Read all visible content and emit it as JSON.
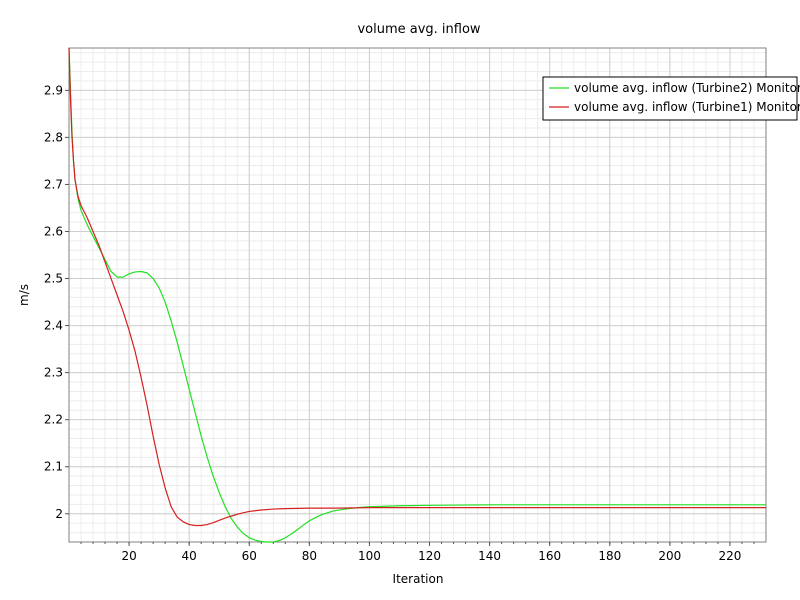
{
  "chart_data": {
    "type": "line",
    "title": "volume avg. inflow",
    "xlabel": "Iteration",
    "ylabel": "m/s",
    "xlim": [
      0,
      232
    ],
    "ylim": [
      1.94,
      2.99
    ],
    "xticks": [
      20,
      40,
      60,
      80,
      100,
      120,
      140,
      160,
      180,
      200,
      220
    ],
    "yticks": [
      2.0,
      2.1,
      2.2,
      2.3,
      2.4,
      2.5,
      2.6,
      2.7,
      2.8,
      2.9
    ],
    "ytick_labels": [
      "2",
      "2.1",
      "2.2",
      "2.3",
      "2.4",
      "2.5",
      "2.6",
      "2.7",
      "2.8",
      "2.9"
    ],
    "xtick_labels": [
      "20",
      "40",
      "60",
      "80",
      "100",
      "120",
      "140",
      "160",
      "180",
      "200",
      "220"
    ],
    "x_minor_step": 4,
    "y_minor_step": 0.02,
    "grid": true,
    "legend_position": "top-right",
    "series": [
      {
        "name": "volume avg. inflow (Turbine2) Monitor",
        "color": "#22e022",
        "points": [
          [
            0,
            2.99
          ],
          [
            0.5,
            2.9
          ],
          [
            1,
            2.81
          ],
          [
            1.5,
            2.75
          ],
          [
            2,
            2.71
          ],
          [
            3,
            2.67
          ],
          [
            4,
            2.645
          ],
          [
            6,
            2.615
          ],
          [
            8,
            2.59
          ],
          [
            10,
            2.565
          ],
          [
            12,
            2.54
          ],
          [
            14,
            2.515
          ],
          [
            16,
            2.503
          ],
          [
            18,
            2.503
          ],
          [
            20,
            2.51
          ],
          [
            22,
            2.514
          ],
          [
            24,
            2.515
          ],
          [
            26,
            2.512
          ],
          [
            28,
            2.5
          ],
          [
            30,
            2.48
          ],
          [
            32,
            2.45
          ],
          [
            34,
            2.41
          ],
          [
            36,
            2.365
          ],
          [
            38,
            2.315
          ],
          [
            40,
            2.265
          ],
          [
            42,
            2.215
          ],
          [
            44,
            2.165
          ],
          [
            46,
            2.12
          ],
          [
            48,
            2.08
          ],
          [
            50,
            2.045
          ],
          [
            52,
            2.015
          ],
          [
            54,
            1.99
          ],
          [
            56,
            1.972
          ],
          [
            58,
            1.958
          ],
          [
            60,
            1.949
          ],
          [
            62,
            1.944
          ],
          [
            64,
            1.941
          ],
          [
            66,
            1.94
          ],
          [
            68,
            1.94
          ],
          [
            70,
            1.943
          ],
          [
            72,
            1.949
          ],
          [
            74,
            1.957
          ],
          [
            76,
            1.966
          ],
          [
            78,
            1.976
          ],
          [
            80,
            1.985
          ],
          [
            84,
            1.998
          ],
          [
            88,
            2.006
          ],
          [
            92,
            2.01
          ],
          [
            96,
            2.013
          ],
          [
            100,
            2.015
          ],
          [
            110,
            2.017
          ],
          [
            120,
            2.018
          ],
          [
            140,
            2.019
          ],
          [
            160,
            2.019
          ],
          [
            200,
            2.019
          ],
          [
            232,
            2.019
          ]
        ]
      },
      {
        "name": "volume avg. inflow (Turbine1) Monitor",
        "color": "#d42020",
        "points": [
          [
            0,
            2.99
          ],
          [
            0.5,
            2.88
          ],
          [
            1,
            2.8
          ],
          [
            1.5,
            2.75
          ],
          [
            2,
            2.71
          ],
          [
            3,
            2.675
          ],
          [
            4,
            2.655
          ],
          [
            6,
            2.63
          ],
          [
            8,
            2.6
          ],
          [
            10,
            2.57
          ],
          [
            12,
            2.535
          ],
          [
            14,
            2.5
          ],
          [
            16,
            2.465
          ],
          [
            18,
            2.43
          ],
          [
            20,
            2.39
          ],
          [
            22,
            2.345
          ],
          [
            24,
            2.29
          ],
          [
            26,
            2.23
          ],
          [
            28,
            2.165
          ],
          [
            30,
            2.105
          ],
          [
            32,
            2.055
          ],
          [
            34,
            2.015
          ],
          [
            36,
            1.993
          ],
          [
            38,
            1.983
          ],
          [
            40,
            1.977
          ],
          [
            42,
            1.975
          ],
          [
            44,
            1.975
          ],
          [
            46,
            1.977
          ],
          [
            48,
            1.981
          ],
          [
            50,
            1.986
          ],
          [
            52,
            1.991
          ],
          [
            54,
            1.995
          ],
          [
            56,
            1.999
          ],
          [
            58,
            2.002
          ],
          [
            60,
            2.005
          ],
          [
            64,
            2.008
          ],
          [
            68,
            2.01
          ],
          [
            72,
            2.011
          ],
          [
            80,
            2.012
          ],
          [
            90,
            2.012
          ],
          [
            100,
            2.013
          ],
          [
            120,
            2.013
          ],
          [
            160,
            2.013
          ],
          [
            200,
            2.013
          ],
          [
            232,
            2.013
          ]
        ]
      }
    ]
  }
}
